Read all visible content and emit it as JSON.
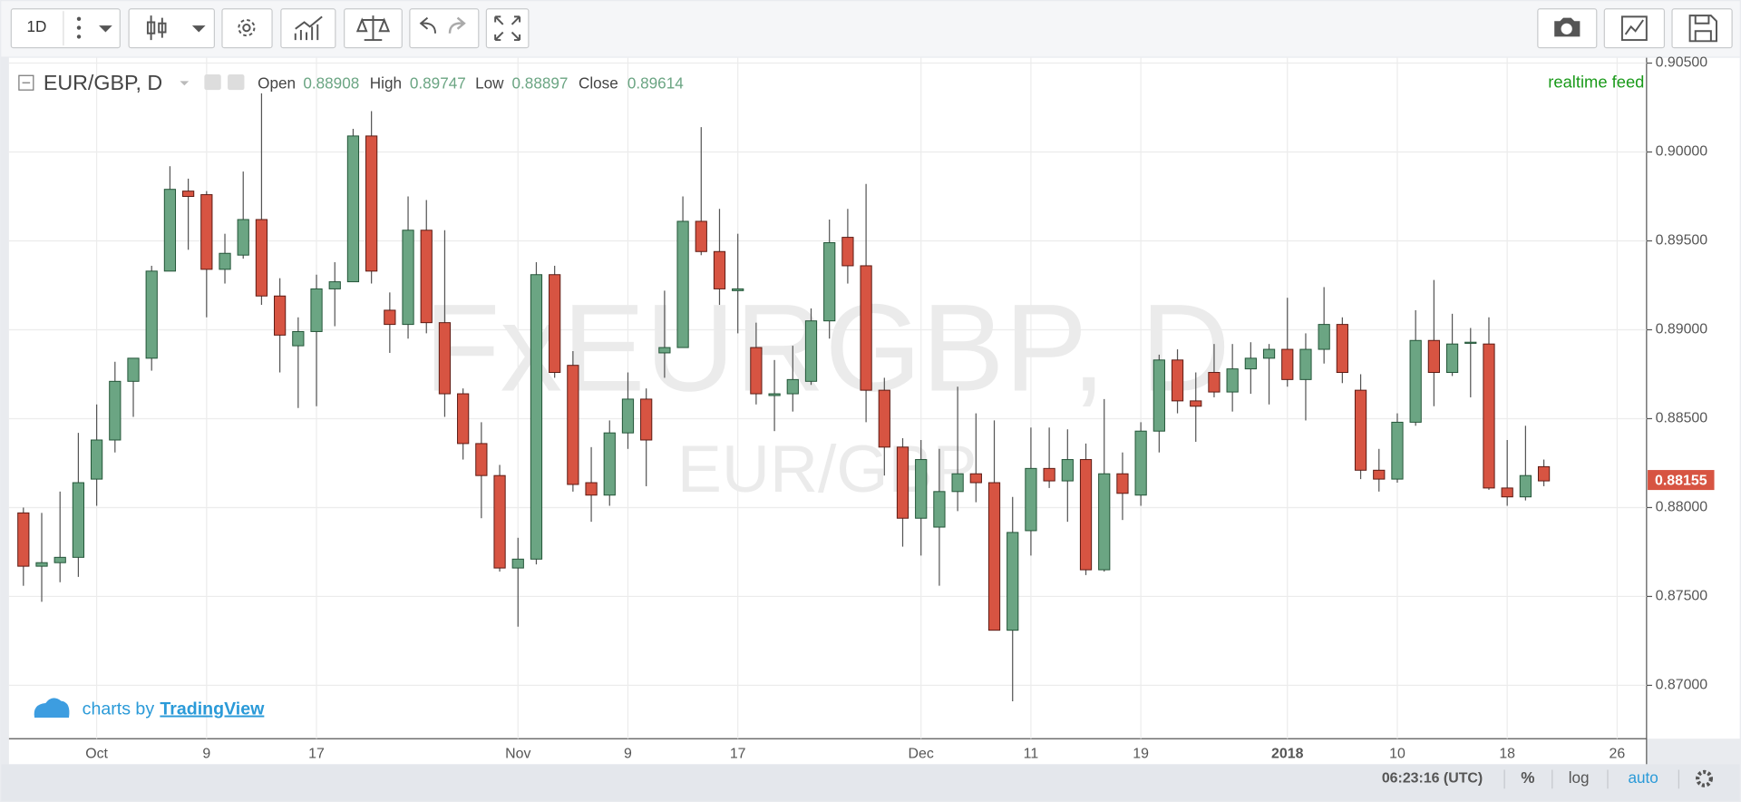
{
  "toolbar": {
    "interval": "1D"
  },
  "chart_data": {
    "type": "candlestick",
    "title": "EUR/GBP, D",
    "header": {
      "labels": [
        "Open",
        "High",
        "Low",
        "Close"
      ],
      "values": [
        0.88908,
        0.89747,
        0.88897,
        0.89614
      ]
    },
    "status": "realtime feed",
    "watermark": {
      "symbol": "FxEURGBP, D",
      "pair": "EUR/GBP"
    },
    "categories": [
      null,
      null,
      null,
      null,
      "Oct",
      null,
      null,
      null,
      null,
      null,
      "9",
      null,
      null,
      null,
      null,
      null,
      "17",
      null,
      null,
      null,
      null,
      null,
      null,
      null,
      null,
      null,
      null,
      "Nov",
      null,
      null,
      null,
      null,
      null,
      "9",
      null,
      null,
      null,
      null,
      null,
      "17",
      null,
      null,
      null,
      null,
      null,
      null,
      null,
      null,
      null,
      "Dec",
      null,
      null,
      null,
      null,
      null,
      "11",
      null,
      null,
      null,
      null,
      null,
      "19",
      null,
      null,
      null,
      null,
      null,
      null,
      null,
      "2018",
      null,
      null,
      null,
      null,
      null,
      "10",
      null,
      null,
      null,
      null,
      null,
      "18",
      null,
      null,
      null,
      null,
      null,
      "26"
    ],
    "open": [
      0.8797,
      0.8767,
      0.8769,
      0.8772,
      0.8816,
      0.8838,
      0.8871,
      0.8884,
      0.8933,
      0.8978,
      0.8976,
      0.8934,
      0.8942,
      0.8962,
      0.8919,
      0.8891,
      0.8899,
      0.8923,
      0.8927,
      0.9009,
      0.8911,
      0.8903,
      0.8956,
      0.8904,
      0.8864,
      0.8836,
      0.8818,
      0.8766,
      0.8771,
      0.8931,
      0.888,
      0.8814,
      0.8807,
      0.8842,
      0.8861,
      0.8887,
      0.889,
      0.8961,
      0.8944,
      0.8922,
      0.889,
      0.8863,
      0.8864,
      0.8871,
      0.8905,
      0.8952,
      0.8936,
      0.8866,
      0.8834,
      0.8794,
      0.8789,
      0.8809,
      0.8819,
      0.8814,
      0.8731,
      0.8787,
      0.8822,
      0.8815,
      0.8827,
      0.8765,
      0.8819,
      0.8807,
      0.8843,
      0.8883,
      0.886,
      0.8876,
      0.8865,
      0.8878,
      0.8884,
      0.8889,
      0.8872,
      0.8889,
      0.8903,
      0.8866,
      0.8821,
      0.8816,
      0.8848,
      0.8894,
      0.8876,
      0.8893,
      0.8892,
      0.8811,
      0.8806,
      0.8823,
      null,
      null,
      null,
      null
    ],
    "high": [
      0.88,
      0.8797,
      0.8809,
      0.8842,
      0.8858,
      0.8882,
      0.8884,
      0.8936,
      0.8992,
      0.8985,
      0.8978,
      0.8954,
      0.8989,
      0.9033,
      0.8929,
      0.8907,
      0.8931,
      0.8938,
      0.9013,
      0.9023,
      0.8921,
      0.8975,
      0.8973,
      0.8956,
      0.8867,
      0.8848,
      0.8824,
      0.8783,
      0.8938,
      0.8936,
      0.8888,
      0.8834,
      0.8849,
      0.8876,
      0.8867,
      0.8922,
      0.8975,
      0.9014,
      0.8968,
      0.8954,
      0.8904,
      0.8883,
      0.8891,
      0.8912,
      0.8962,
      0.8968,
      0.8982,
      0.8873,
      0.8839,
      0.8838,
      0.8833,
      0.8868,
      0.8853,
      0.8849,
      0.8806,
      0.8845,
      0.8845,
      0.8844,
      0.8836,
      0.8861,
      0.8831,
      0.8848,
      0.8886,
      0.8889,
      0.8876,
      0.8892,
      0.8892,
      0.8893,
      0.8892,
      0.8918,
      0.8898,
      0.8924,
      0.8907,
      0.8875,
      0.8833,
      0.8853,
      0.8911,
      0.8928,
      0.8909,
      0.8901,
      0.8907,
      0.8838,
      0.8846,
      0.8827,
      null,
      null,
      null,
      null
    ],
    "low": [
      0.8756,
      0.8747,
      0.8758,
      0.8761,
      0.8801,
      0.8831,
      0.8851,
      0.8877,
      0.8933,
      0.8945,
      0.8907,
      0.8926,
      0.894,
      0.8914,
      0.8876,
      0.8856,
      0.8857,
      0.8902,
      0.8927,
      0.8926,
      0.8887,
      0.8895,
      0.8898,
      0.8851,
      0.8827,
      0.8794,
      0.8764,
      0.8733,
      0.8768,
      0.8873,
      0.8809,
      0.8792,
      0.8801,
      0.8833,
      0.8812,
      0.8873,
      0.889,
      0.8942,
      0.8914,
      0.8898,
      0.8858,
      0.8843,
      0.8854,
      0.8869,
      0.8895,
      0.8926,
      0.8848,
      0.8818,
      0.8778,
      0.8773,
      0.8756,
      0.8798,
      0.8803,
      0.8731,
      0.8691,
      0.8773,
      0.8811,
      0.8792,
      0.8762,
      0.8764,
      0.8793,
      0.8801,
      0.8831,
      0.8853,
      0.8837,
      0.8862,
      0.8854,
      0.8864,
      0.8858,
      0.8868,
      0.8849,
      0.8881,
      0.887,
      0.8816,
      0.8809,
      0.8814,
      0.8846,
      0.8857,
      0.8874,
      0.8862,
      0.881,
      0.8801,
      0.8804,
      0.8812,
      null,
      null,
      null,
      null
    ],
    "close": [
      0.8767,
      0.8769,
      0.8772,
      0.8814,
      0.8838,
      0.8871,
      0.8884,
      0.8933,
      0.8979,
      0.8975,
      0.8934,
      0.8943,
      0.8962,
      0.8919,
      0.8897,
      0.8899,
      0.8923,
      0.8927,
      0.9009,
      0.8933,
      0.8903,
      0.8956,
      0.8904,
      0.8864,
      0.8836,
      0.8818,
      0.8766,
      0.8771,
      0.8931,
      0.8876,
      0.8813,
      0.8807,
      0.8842,
      0.8861,
      0.8838,
      0.889,
      0.8961,
      0.8944,
      0.8923,
      0.8923,
      0.8864,
      0.8864,
      0.8872,
      0.8905,
      0.8949,
      0.8936,
      0.8866,
      0.8834,
      0.8794,
      0.8827,
      0.8809,
      0.8819,
      0.8814,
      0.8731,
      0.8786,
      0.8822,
      0.8815,
      0.8827,
      0.8765,
      0.8819,
      0.8808,
      0.8843,
      0.8883,
      0.886,
      0.8857,
      0.8865,
      0.8878,
      0.8884,
      0.8889,
      0.8872,
      0.8889,
      0.8903,
      0.8876,
      0.8821,
      0.8816,
      0.8848,
      0.8894,
      0.8876,
      0.8892,
      0.8893,
      0.8811,
      0.8806,
      0.8818,
      0.8815,
      null,
      null,
      null,
      null
    ],
    "up_color": "#6ba583",
    "down_color": "#d75442",
    "up_border": "#225437",
    "down_border": "#5b1a13",
    "last_price": 0.88155,
    "ylim": [
      0.867,
      0.9053
    ],
    "yticks": [
      {
        "value": 0.87,
        "label": "0.87000"
      },
      {
        "value": 0.875,
        "label": "0.87500"
      },
      {
        "value": 0.88,
        "label": "0.88000"
      },
      {
        "value": 0.885,
        "label": "0.88500"
      },
      {
        "value": 0.89,
        "label": "0.89000"
      },
      {
        "value": 0.895,
        "label": "0.89500"
      },
      {
        "value": 0.9,
        "label": "0.90000"
      },
      {
        "value": 0.905,
        "label": "0.90500"
      }
    ],
    "grid": true
  },
  "branding": {
    "prefix": "charts by",
    "link": "TradingView"
  },
  "footer": {
    "time": "06:23:16 (UTC)",
    "percent": "%",
    "log": "log",
    "auto": "auto"
  }
}
